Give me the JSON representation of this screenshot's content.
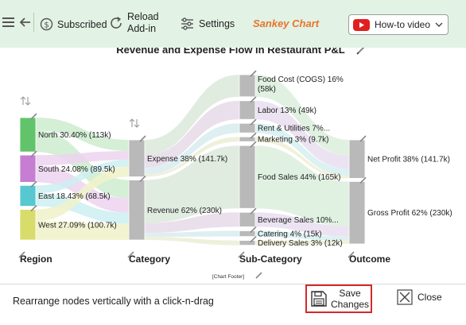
{
  "toolbar": {
    "subscribed_label": "Subscribed",
    "reload_line1": "Reload",
    "reload_line2": "Add-in",
    "settings_label": "Settings",
    "app_title": "Sankey Chart",
    "howto_label": "How-to video"
  },
  "chart_data": {
    "type": "sankey",
    "title": "Revenue and Expense Flow in Restaurant P&L",
    "footer": "[Chart Footer]",
    "columns": [
      "Region",
      "Category",
      "Sub-Category",
      "Outcome"
    ],
    "nodes": [
      {
        "id": "north",
        "col": 0,
        "label": "North 30.40% (113k)",
        "value": 113,
        "color": "#62c46a"
      },
      {
        "id": "south",
        "col": 0,
        "label": "South 24.08% (89.5k)",
        "value": 89.5,
        "color": "#c57ed1"
      },
      {
        "id": "east",
        "col": 0,
        "label": "East 18.43% (68.5k)",
        "value": 68.5,
        "color": "#58c8d0"
      },
      {
        "id": "west",
        "col": 0,
        "label": "West 27.09% (100.7k)",
        "value": 100.7,
        "color": "#d8dc6a"
      },
      {
        "id": "expense",
        "col": 1,
        "label": "Expense 38% (141.7k)",
        "value": 141.7,
        "color": "#b9b9b9"
      },
      {
        "id": "revenue",
        "col": 1,
        "label": "Revenue 62% (230k)",
        "value": 230,
        "color": "#b9b9b9"
      },
      {
        "id": "cogs",
        "col": 2,
        "label": "Food Cost (COGS) 16% (58k)",
        "value": 58,
        "color": "#b9b9b9"
      },
      {
        "id": "labor",
        "col": 2,
        "label": "Labor 13% (49k)",
        "value": 49,
        "color": "#b9b9b9"
      },
      {
        "id": "rent",
        "col": 2,
        "label": "Rent & Utilities 7%...",
        "value": 25,
        "color": "#b9b9b9"
      },
      {
        "id": "marketing",
        "col": 2,
        "label": "Marketing 3% (9.7k)",
        "value": 9.7,
        "color": "#b9b9b9"
      },
      {
        "id": "foodsales",
        "col": 2,
        "label": "Food Sales 44% (165k)",
        "value": 165,
        "color": "#b9b9b9"
      },
      {
        "id": "beverage",
        "col": 2,
        "label": "Beverage Sales 10%...",
        "value": 38,
        "color": "#b9b9b9"
      },
      {
        "id": "catering",
        "col": 2,
        "label": "Catering 4% (15k)",
        "value": 15,
        "color": "#b9b9b9"
      },
      {
        "id": "delivery",
        "col": 2,
        "label": "Delivery Sales 3% (12k)",
        "value": 12,
        "color": "#b9b9b9"
      },
      {
        "id": "netprofit",
        "col": 3,
        "label": "Net Profit 38% (141.7k)",
        "value": 141.7,
        "color": "#b9b9b9"
      },
      {
        "id": "grossprofit",
        "col": 3,
        "label": "Gross Profit 62% (230k)",
        "value": 230,
        "color": "#b9b9b9"
      }
    ],
    "links": [
      {
        "from": "north",
        "to": "expense",
        "value": 43,
        "color": "#cdeccf"
      },
      {
        "from": "north",
        "to": "revenue",
        "value": 70,
        "color": "#cdeccf"
      },
      {
        "from": "south",
        "to": "expense",
        "value": 34,
        "color": "#ecd4f0"
      },
      {
        "from": "south",
        "to": "revenue",
        "value": 55.5,
        "color": "#ecd4f0"
      },
      {
        "from": "east",
        "to": "expense",
        "value": 26,
        "color": "#cdeff1"
      },
      {
        "from": "east",
        "to": "revenue",
        "value": 42.5,
        "color": "#cdeff1"
      },
      {
        "from": "west",
        "to": "expense",
        "value": 38.7,
        "color": "#f0f2c9"
      },
      {
        "from": "west",
        "to": "revenue",
        "value": 62,
        "color": "#f0f2c9"
      },
      {
        "from": "expense",
        "to": "cogs",
        "value": 58,
        "color": "#dce9dc"
      },
      {
        "from": "expense",
        "to": "labor",
        "value": 49,
        "color": "#e6dbe9"
      },
      {
        "from": "expense",
        "to": "rent",
        "value": 25,
        "color": "#d7ecee"
      },
      {
        "from": "expense",
        "to": "marketing",
        "value": 9.7,
        "color": "#ecedd6"
      },
      {
        "from": "revenue",
        "to": "foodsales",
        "value": 165,
        "color": "#dce9dc"
      },
      {
        "from": "revenue",
        "to": "beverage",
        "value": 38,
        "color": "#e6dbe9"
      },
      {
        "from": "revenue",
        "to": "catering",
        "value": 15,
        "color": "#d7ecee"
      },
      {
        "from": "revenue",
        "to": "delivery",
        "value": 12,
        "color": "#ecedd6"
      },
      {
        "from": "cogs",
        "to": "netprofit",
        "value": 58,
        "color": "#dbeedc"
      },
      {
        "from": "labor",
        "to": "netprofit",
        "value": 49,
        "color": "#e9def0"
      },
      {
        "from": "rent",
        "to": "netprofit",
        "value": 25,
        "color": "#d6eef0"
      },
      {
        "from": "marketing",
        "to": "netprofit",
        "value": 9.7,
        "color": "#eeefd2"
      },
      {
        "from": "foodsales",
        "to": "grossprofit",
        "value": 165,
        "color": "#dbeedc"
      },
      {
        "from": "beverage",
        "to": "grossprofit",
        "value": 38,
        "color": "#e9def0"
      },
      {
        "from": "catering",
        "to": "grossprofit",
        "value": 15,
        "color": "#d6eef0"
      },
      {
        "from": "delivery",
        "to": "grossprofit",
        "value": 12,
        "color": "#eeefd2"
      }
    ]
  },
  "footer": {
    "hint": "Rearrange nodes vertically with a click-n-drag",
    "save_line1": "Save",
    "save_line2": "Changes",
    "close_label": "Close"
  }
}
